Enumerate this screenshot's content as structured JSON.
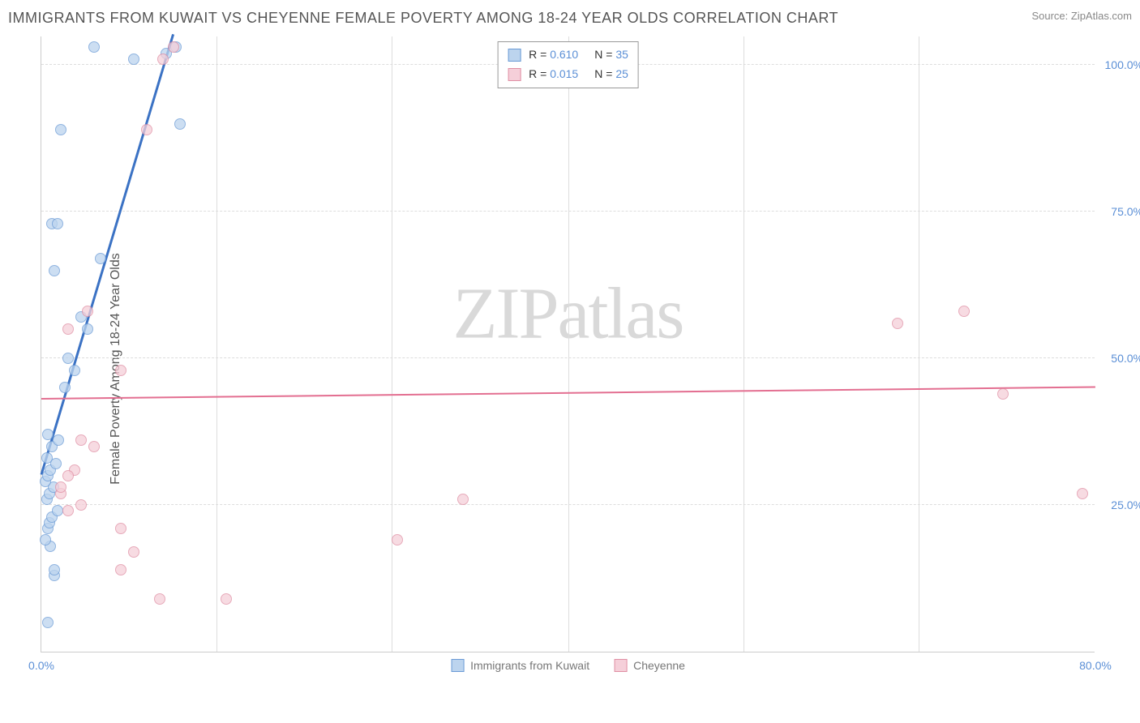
{
  "title": "IMMIGRANTS FROM KUWAIT VS CHEYENNE FEMALE POVERTY AMONG 18-24 YEAR OLDS CORRELATION CHART",
  "source_label": "Source: ",
  "source_name": "ZipAtlas.com",
  "y_axis_label": "Female Poverty Among 18-24 Year Olds",
  "watermark_a": "ZIP",
  "watermark_b": "atlas",
  "chart": {
    "type": "scatter",
    "xlim": [
      0,
      80
    ],
    "ylim": [
      0,
      105
    ],
    "x_ticks": [
      {
        "v": 0,
        "label": "0.0%"
      },
      {
        "v": 80,
        "label": "80.0%"
      }
    ],
    "x_minor_ticks": [
      13.3,
      26.6,
      40,
      53.3,
      66.6
    ],
    "y_ticks": [
      {
        "v": 25,
        "label": "25.0%"
      },
      {
        "v": 50,
        "label": "50.0%"
      },
      {
        "v": 75,
        "label": "75.0%"
      },
      {
        "v": 100,
        "label": "100.0%"
      }
    ],
    "background_color": "#ffffff",
    "grid_color": "#dddddd",
    "point_radius": 7,
    "series": [
      {
        "name": "Immigrants from Kuwait",
        "fill_color": "#bcd4ee",
        "stroke_color": "#6b9bd6",
        "r_label": "R = ",
        "r_value": "0.610",
        "n_label": "N = ",
        "n_value": "35",
        "trend": {
          "x1": 0,
          "y1": 30,
          "x2": 10,
          "y2": 105,
          "color": "#3b72c4",
          "width": 3
        },
        "points": [
          {
            "x": 0.5,
            "y": 5
          },
          {
            "x": 1.0,
            "y": 13
          },
          {
            "x": 1.0,
            "y": 14
          },
          {
            "x": 0.7,
            "y": 18
          },
          {
            "x": 0.3,
            "y": 19
          },
          {
            "x": 0.5,
            "y": 21
          },
          {
            "x": 0.6,
            "y": 22
          },
          {
            "x": 0.8,
            "y": 23
          },
          {
            "x": 1.2,
            "y": 24
          },
          {
            "x": 0.4,
            "y": 26
          },
          {
            "x": 0.6,
            "y": 27
          },
          {
            "x": 0.9,
            "y": 28
          },
          {
            "x": 0.3,
            "y": 29
          },
          {
            "x": 0.5,
            "y": 30
          },
          {
            "x": 0.7,
            "y": 31
          },
          {
            "x": 1.1,
            "y": 32
          },
          {
            "x": 0.4,
            "y": 33
          },
          {
            "x": 0.8,
            "y": 35
          },
          {
            "x": 1.3,
            "y": 36
          },
          {
            "x": 0.5,
            "y": 37
          },
          {
            "x": 1.8,
            "y": 45
          },
          {
            "x": 2.5,
            "y": 48
          },
          {
            "x": 2.0,
            "y": 50
          },
          {
            "x": 3.5,
            "y": 55
          },
          {
            "x": 3.0,
            "y": 57
          },
          {
            "x": 1.0,
            "y": 65
          },
          {
            "x": 4.5,
            "y": 67
          },
          {
            "x": 0.8,
            "y": 73
          },
          {
            "x": 1.2,
            "y": 73
          },
          {
            "x": 1.5,
            "y": 89
          },
          {
            "x": 10.5,
            "y": 90
          },
          {
            "x": 7.0,
            "y": 101
          },
          {
            "x": 9.5,
            "y": 102
          },
          {
            "x": 10.2,
            "y": 103
          },
          {
            "x": 4.0,
            "y": 103
          }
        ]
      },
      {
        "name": "Cheyenne",
        "fill_color": "#f5cfd9",
        "stroke_color": "#e08fa4",
        "r_label": "R = ",
        "r_value": "0.015",
        "n_label": "N = ",
        "n_value": "25",
        "trend": {
          "x1": 0,
          "y1": 43,
          "x2": 80,
          "y2": 45,
          "color": "#e36f91",
          "width": 2
        },
        "points": [
          {
            "x": 9,
            "y": 9
          },
          {
            "x": 14,
            "y": 9
          },
          {
            "x": 6,
            "y": 14
          },
          {
            "x": 7,
            "y": 17
          },
          {
            "x": 6,
            "y": 21
          },
          {
            "x": 2,
            "y": 24
          },
          {
            "x": 3,
            "y": 25
          },
          {
            "x": 1.5,
            "y": 27
          },
          {
            "x": 32,
            "y": 26
          },
          {
            "x": 79,
            "y": 27
          },
          {
            "x": 2.5,
            "y": 31
          },
          {
            "x": 4,
            "y": 35
          },
          {
            "x": 3,
            "y": 36
          },
          {
            "x": 27,
            "y": 19
          },
          {
            "x": 73,
            "y": 44
          },
          {
            "x": 6,
            "y": 48
          },
          {
            "x": 2,
            "y": 55
          },
          {
            "x": 3.5,
            "y": 58
          },
          {
            "x": 65,
            "y": 56
          },
          {
            "x": 70,
            "y": 58
          },
          {
            "x": 1.5,
            "y": 28
          },
          {
            "x": 8,
            "y": 89
          },
          {
            "x": 9.2,
            "y": 101
          },
          {
            "x": 10,
            "y": 103
          },
          {
            "x": 2,
            "y": 30
          }
        ]
      }
    ],
    "legend_bottom": [
      {
        "label": "Immigrants from Kuwait",
        "fill": "#bcd4ee",
        "stroke": "#6b9bd6"
      },
      {
        "label": "Cheyenne",
        "fill": "#f5cfd9",
        "stroke": "#e08fa4"
      }
    ]
  }
}
